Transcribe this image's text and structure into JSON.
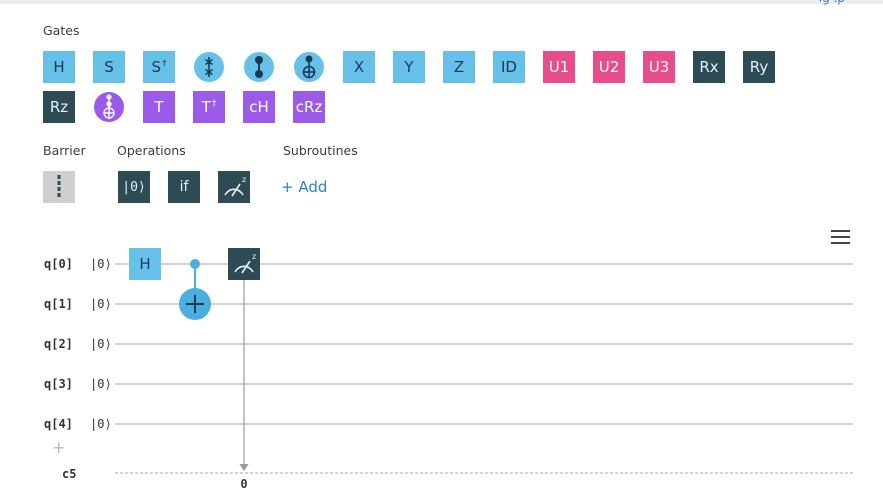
{
  "palette": {
    "blue": "#67c0e8",
    "pink": "#e74d8a",
    "purple": "#9b5be8",
    "dark": "#2d4a55",
    "wire": "#c4c4c4",
    "barrier": "#cfcfcf",
    "link": "#2f7fc8"
  },
  "sections": {
    "gates": "Gates",
    "barrier": "Barrier",
    "operations": "Operations",
    "subroutines": "Subroutines"
  },
  "gates_row1": [
    {
      "label": "H"
    },
    {
      "label": "S"
    },
    {
      "label": "S",
      "sup": "†"
    },
    {
      "icon": "swap-icon"
    },
    {
      "icon": "cz-icon"
    },
    {
      "icon": "cnot-icon"
    },
    {
      "label": "X"
    },
    {
      "label": "Y"
    },
    {
      "label": "Z"
    },
    {
      "label": "ID"
    },
    {
      "label": "U1"
    },
    {
      "label": "U2"
    },
    {
      "label": "U3"
    },
    {
      "label": "Rx"
    },
    {
      "label": "Ry"
    }
  ],
  "gates_row2": [
    {
      "label": "Rz"
    },
    {
      "icon": "toffoli-icon"
    },
    {
      "label": "T"
    },
    {
      "label": "T",
      "sup": "†"
    },
    {
      "label": "cH"
    },
    {
      "label": "cRz"
    }
  ],
  "operations": [
    {
      "label": "|0⟩"
    },
    {
      "label": "if"
    },
    {
      "icon": "measure-icon"
    }
  ],
  "subroutines_add": "+ Add",
  "circuit": {
    "qubits": [
      {
        "label": "q[0]",
        "init": "|0⟩"
      },
      {
        "label": "q[1]",
        "init": "|0⟩"
      },
      {
        "label": "q[2]",
        "init": "|0⟩"
      },
      {
        "label": "q[3]",
        "init": "|0⟩"
      },
      {
        "label": "q[4]",
        "init": "|0⟩"
      }
    ],
    "add_qubit": "+",
    "classical": {
      "label": "c5"
    },
    "placed": {
      "h_label": "H",
      "measure_target": "0"
    }
  }
}
